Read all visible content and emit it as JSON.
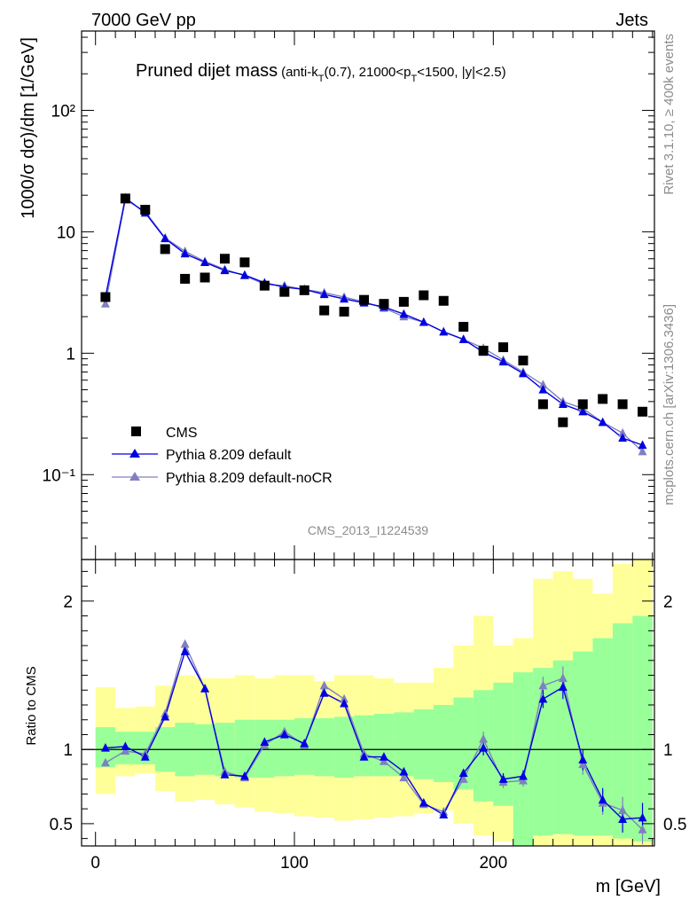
{
  "header": {
    "left": "7000 GeV pp",
    "right": "Jets"
  },
  "side_labels": {
    "rivet": "Rivet 3.1.10, ≥ 400k events",
    "mcplots": "mcplots.cern.ch [arXiv:1306.3436]"
  },
  "colors": {
    "cms": "#000000",
    "pythia_default": "#0000e0",
    "pythia_nocr": "#8080c0",
    "band_outer": "#ffff99",
    "band_inner": "#99ff99"
  },
  "chart_data": [
    {
      "type": "scatter",
      "title_main": "Pruned dijet mass",
      "title_sub": {
        "a": "(anti-k",
        "a_sub": "T",
        "b": "(0.7), 21000<p",
        "b_sub": "T",
        "c": "<1500, |y|<2.5)"
      },
      "ylabel": "1000/σ dσ)/dm [1/GeV]",
      "yscale": "log",
      "ylim": [
        0.02,
        450
      ],
      "xlim": [
        -7,
        281
      ],
      "ytick_labels": [
        "10⁻¹",
        "1",
        "10",
        "10²"
      ],
      "analysis_label": "CMS_2013_I1224539",
      "legend": {
        "position": "lower-left",
        "entries": [
          "CMS",
          "Pythia 8.209 default",
          "Pythia 8.209 default-noCR"
        ]
      },
      "x": [
        5,
        15,
        25,
        35,
        45,
        55,
        65,
        75,
        85,
        95,
        105,
        115,
        125,
        135,
        145,
        155,
        165,
        175,
        185,
        195,
        205,
        215,
        225,
        235,
        245,
        255,
        265,
        275
      ],
      "series": [
        {
          "name": "CMS",
          "values": [
            2.9,
            18.8,
            15.2,
            7.2,
            4.1,
            4.2,
            6.0,
            5.6,
            3.6,
            3.2,
            3.3,
            2.25,
            2.2,
            2.75,
            2.55,
            2.65,
            3.0,
            2.7,
            1.65,
            1.05,
            1.12,
            0.87,
            0.38,
            0.27,
            0.38,
            0.42,
            0.38,
            0.33
          ]
        },
        {
          "name": "Pythia 8.209 default",
          "values": [
            2.9,
            19.0,
            14.3,
            8.8,
            6.6,
            5.6,
            4.8,
            4.4,
            3.8,
            3.5,
            3.35,
            3.05,
            2.8,
            2.6,
            2.4,
            2.1,
            1.8,
            1.5,
            1.3,
            1.02,
            0.85,
            0.68,
            0.5,
            0.38,
            0.33,
            0.27,
            0.2,
            0.175
          ]
        },
        {
          "name": "Pythia 8.209 default-noCR",
          "values": [
            2.55,
            18.4,
            14.7,
            8.9,
            6.9,
            5.7,
            4.9,
            4.35,
            3.7,
            3.6,
            3.35,
            3.15,
            2.9,
            2.65,
            2.35,
            2.0,
            1.8,
            1.5,
            1.3,
            1.1,
            0.88,
            0.7,
            0.55,
            0.4,
            0.35,
            0.27,
            0.22,
            0.155
          ]
        }
      ]
    },
    {
      "type": "line",
      "ylabel": "Ratio to CMS",
      "xlabel": "m [GeV]",
      "ylim": [
        0.35,
        2.28
      ],
      "xlim": [
        -7,
        281
      ],
      "x_ticks": [
        0,
        100,
        200
      ],
      "y_ticks": [
        0.5,
        1,
        2
      ],
      "reference_line": 1,
      "bands": {
        "edges": [
          0,
          10,
          20,
          30,
          40,
          50,
          60,
          70,
          80,
          90,
          100,
          110,
          120,
          130,
          140,
          150,
          160,
          170,
          180,
          190,
          200,
          210,
          220,
          230,
          240,
          250,
          260,
          270,
          280
        ],
        "outer_low": [
          0.7,
          0.82,
          0.84,
          0.72,
          0.65,
          0.66,
          0.63,
          0.61,
          0.58,
          0.57,
          0.55,
          0.54,
          0.52,
          0.53,
          0.54,
          0.55,
          0.57,
          0.59,
          0.5,
          0.42,
          0.38,
          0.35,
          0.35,
          0.35,
          0.35,
          0.35,
          0.35,
          0.35
        ],
        "outer_high": [
          1.42,
          1.28,
          1.29,
          1.43,
          1.5,
          1.48,
          1.48,
          1.5,
          1.48,
          1.5,
          1.5,
          1.46,
          1.5,
          1.5,
          1.48,
          1.45,
          1.45,
          1.55,
          1.7,
          1.9,
          1.7,
          1.75,
          2.15,
          2.2,
          2.15,
          2.05,
          2.25,
          2.28
        ],
        "inner_low": [
          0.88,
          0.9,
          0.9,
          0.85,
          0.82,
          0.83,
          0.82,
          0.81,
          0.81,
          0.82,
          0.83,
          0.82,
          0.81,
          0.82,
          0.82,
          0.82,
          0.8,
          0.78,
          0.73,
          0.65,
          0.62,
          0.35,
          0.42,
          0.43,
          0.42,
          0.42,
          0.4,
          0.38
        ],
        "inner_high": [
          1.15,
          1.12,
          1.12,
          1.15,
          1.18,
          1.17,
          1.18,
          1.2,
          1.2,
          1.2,
          1.21,
          1.21,
          1.22,
          1.23,
          1.24,
          1.25,
          1.27,
          1.3,
          1.35,
          1.4,
          1.45,
          1.52,
          1.55,
          1.6,
          1.66,
          1.75,
          1.85,
          1.9
        ]
      },
      "x": [
        5,
        15,
        25,
        35,
        45,
        55,
        65,
        75,
        85,
        95,
        105,
        115,
        125,
        135,
        145,
        155,
        165,
        175,
        185,
        195,
        205,
        215,
        225,
        235,
        245,
        255,
        265,
        275
      ],
      "series": [
        {
          "name": "Pythia 8.209 default",
          "values": [
            1.01,
            1.02,
            0.95,
            1.22,
            1.66,
            1.41,
            0.83,
            0.82,
            1.05,
            1.1,
            1.04,
            1.38,
            1.31,
            0.95,
            0.95,
            0.85,
            0.64,
            0.56,
            0.84,
            1.01,
            0.8,
            0.82,
            1.34,
            1.42,
            0.93,
            0.66,
            0.53,
            0.54
          ]
        },
        {
          "name": "Pythia 8.209 default-noCR",
          "values": [
            0.91,
            0.99,
            0.97,
            1.24,
            1.71,
            1.41,
            0.85,
            0.81,
            1.03,
            1.12,
            1.03,
            1.43,
            1.34,
            0.97,
            0.92,
            0.81,
            0.63,
            0.58,
            0.8,
            1.07,
            0.78,
            0.79,
            1.43,
            1.48,
            0.9,
            0.64,
            0.59,
            0.46
          ]
        }
      ],
      "errors": {
        "x": [
          195,
          205,
          215,
          225,
          235,
          245,
          255,
          265,
          275
        ],
        "err": [
          0.05,
          0.04,
          0.04,
          0.06,
          0.08,
          0.07,
          0.08,
          0.09,
          0.1
        ]
      }
    }
  ]
}
